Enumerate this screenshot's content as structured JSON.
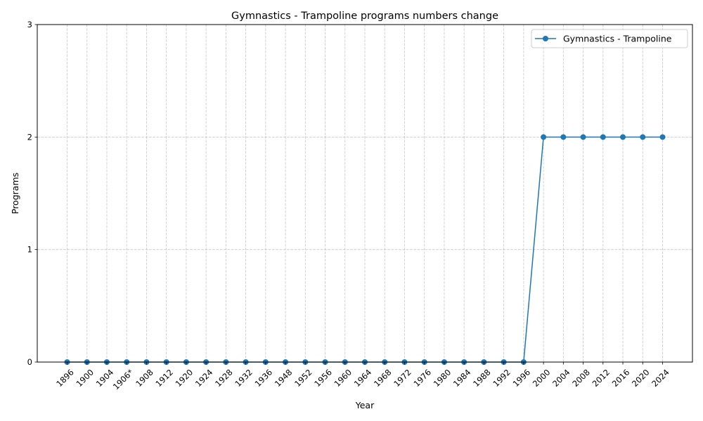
{
  "chart_data": {
    "type": "line",
    "title": "Gymnastics - Trampoline programs numbers change",
    "xlabel": "Year",
    "ylabel": "Programs",
    "categories": [
      "1896",
      "1900",
      "1904",
      "1906*",
      "1908",
      "1912",
      "1920",
      "1924",
      "1928",
      "1932",
      "1936",
      "1948",
      "1952",
      "1956",
      "1960",
      "1964",
      "1968",
      "1972",
      "1976",
      "1980",
      "1984",
      "1988",
      "1992",
      "1996",
      "2000",
      "2004",
      "2008",
      "2012",
      "2016",
      "2020",
      "2024"
    ],
    "series": [
      {
        "name": "Gymnastics - Trampoline",
        "color": "#1f77b4",
        "marker": "circle",
        "values": [
          0,
          0,
          0,
          0,
          0,
          0,
          0,
          0,
          0,
          0,
          0,
          0,
          0,
          0,
          0,
          0,
          0,
          0,
          0,
          0,
          0,
          0,
          0,
          0,
          2,
          2,
          2,
          2,
          2,
          2,
          2
        ]
      }
    ],
    "ylim": [
      0,
      3
    ],
    "yticks": [
      "0",
      "1",
      "2",
      "3"
    ],
    "grid": true,
    "legend_position": "top-right"
  }
}
